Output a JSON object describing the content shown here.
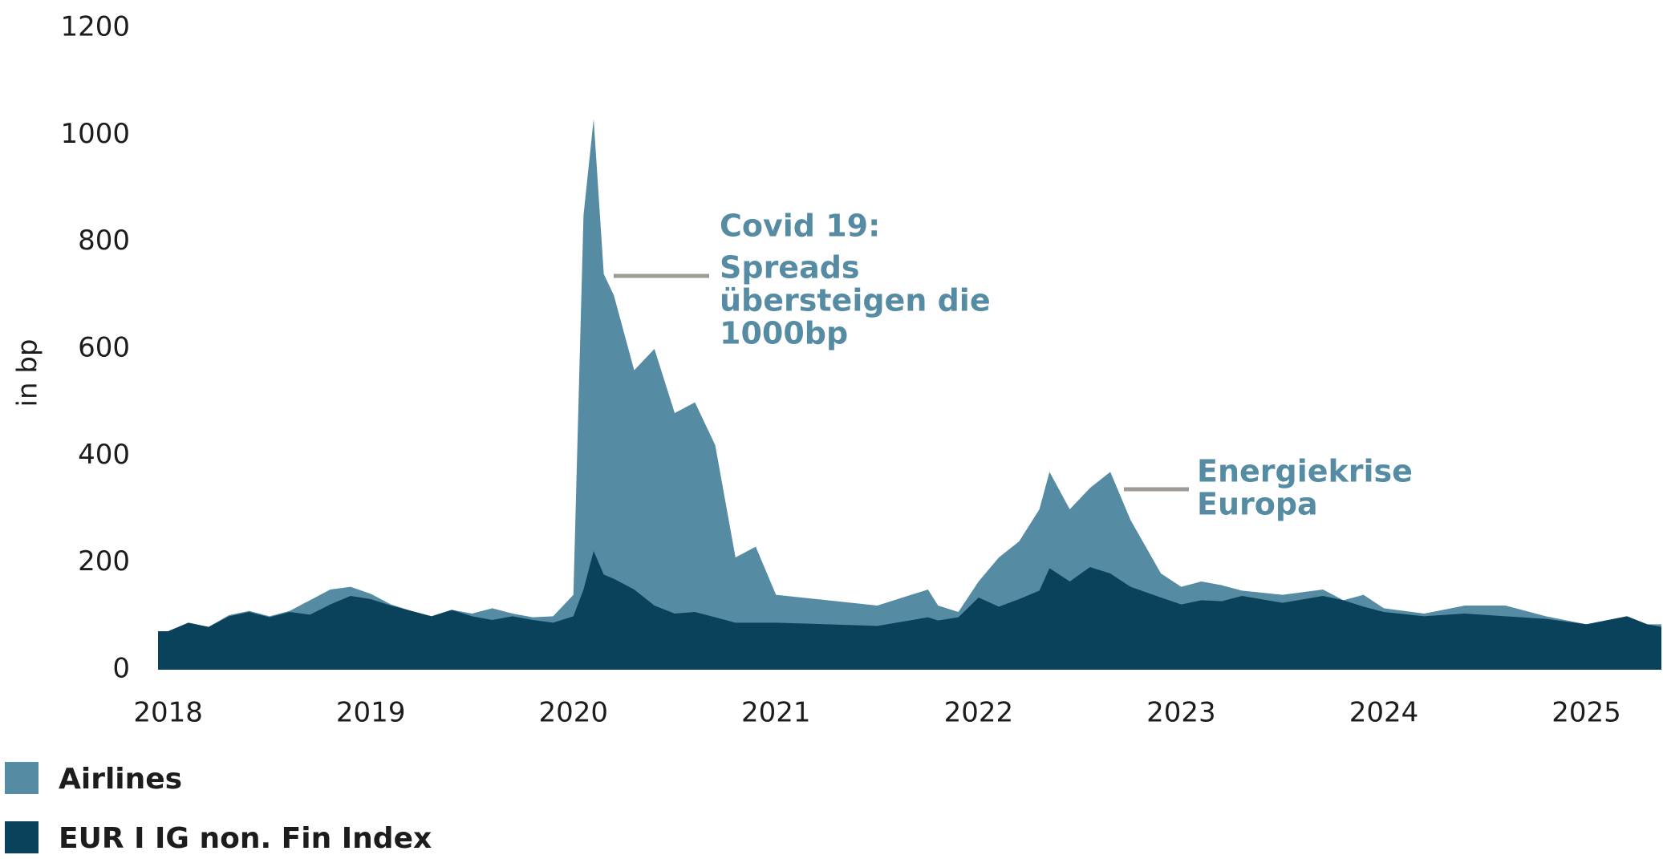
{
  "chart_data": {
    "type": "area",
    "y_label": "in bp",
    "x": [
      2017.95,
      2018.0,
      2018.1,
      2018.2,
      2018.3,
      2018.4,
      2018.5,
      2018.6,
      2018.7,
      2018.8,
      2018.9,
      2019.0,
      2019.1,
      2019.2,
      2019.3,
      2019.4,
      2019.5,
      2019.6,
      2019.7,
      2019.8,
      2019.9,
      2020.0,
      2020.05,
      2020.1,
      2020.15,
      2020.2,
      2020.3,
      2020.4,
      2020.5,
      2020.6,
      2020.7,
      2020.8,
      2020.9,
      2021.0,
      2021.5,
      2021.75,
      2021.8,
      2021.9,
      2022.0,
      2022.1,
      2022.2,
      2022.3,
      2022.35,
      2022.45,
      2022.55,
      2022.65,
      2022.75,
      2022.9,
      2023.0,
      2023.1,
      2023.2,
      2023.3,
      2023.5,
      2023.7,
      2023.8,
      2023.9,
      2024.0,
      2024.2,
      2024.4,
      2024.6,
      2024.8,
      2025.0,
      2025.2,
      2025.3,
      2025.37
    ],
    "series": [
      {
        "name": "Airlines",
        "color": "#568ca3",
        "values": [
          72,
          72,
          88,
          80,
          102,
          110,
          100,
          110,
          130,
          150,
          155,
          142,
          122,
          110,
          100,
          112,
          105,
          115,
          105,
          98,
          100,
          140,
          850,
          1030,
          740,
          700,
          560,
          600,
          480,
          500,
          420,
          210,
          230,
          140,
          120,
          150,
          120,
          108,
          165,
          210,
          240,
          300,
          370,
          300,
          340,
          370,
          280,
          180,
          155,
          165,
          158,
          148,
          140,
          150,
          130,
          140,
          115,
          105,
          120,
          120,
          100,
          85,
          100,
          85,
          85
        ]
      },
      {
        "name": "EUR I IG non. Fin Index",
        "color": "#0a425c",
        "values": [
          72,
          72,
          88,
          80,
          100,
          108,
          98,
          108,
          103,
          122,
          138,
          132,
          120,
          110,
          100,
          112,
          100,
          93,
          100,
          93,
          88,
          100,
          150,
          222,
          178,
          170,
          150,
          120,
          105,
          108,
          98,
          88,
          88,
          88,
          82,
          98,
          92,
          98,
          135,
          118,
          132,
          148,
          190,
          165,
          192,
          180,
          155,
          135,
          122,
          130,
          128,
          138,
          125,
          138,
          130,
          118,
          108,
          100,
          105,
          100,
          95,
          85,
          100,
          85,
          80
        ]
      }
    ],
    "xlim": [
      2017.95,
      2025.37
    ],
    "ylim": [
      0,
      1200
    ],
    "xticks": [
      2018,
      2019,
      2020,
      2021,
      2022,
      2023,
      2024,
      2025
    ],
    "yticks": [
      0,
      200,
      400,
      600,
      800,
      1000,
      1200
    ],
    "annotations": [
      {
        "lines": [
          "Covid 19:",
          "Spreads",
          "übersteigen die",
          "1000bp"
        ]
      },
      {
        "lines": [
          "Energiekrise",
          "Europa"
        ]
      }
    ]
  }
}
